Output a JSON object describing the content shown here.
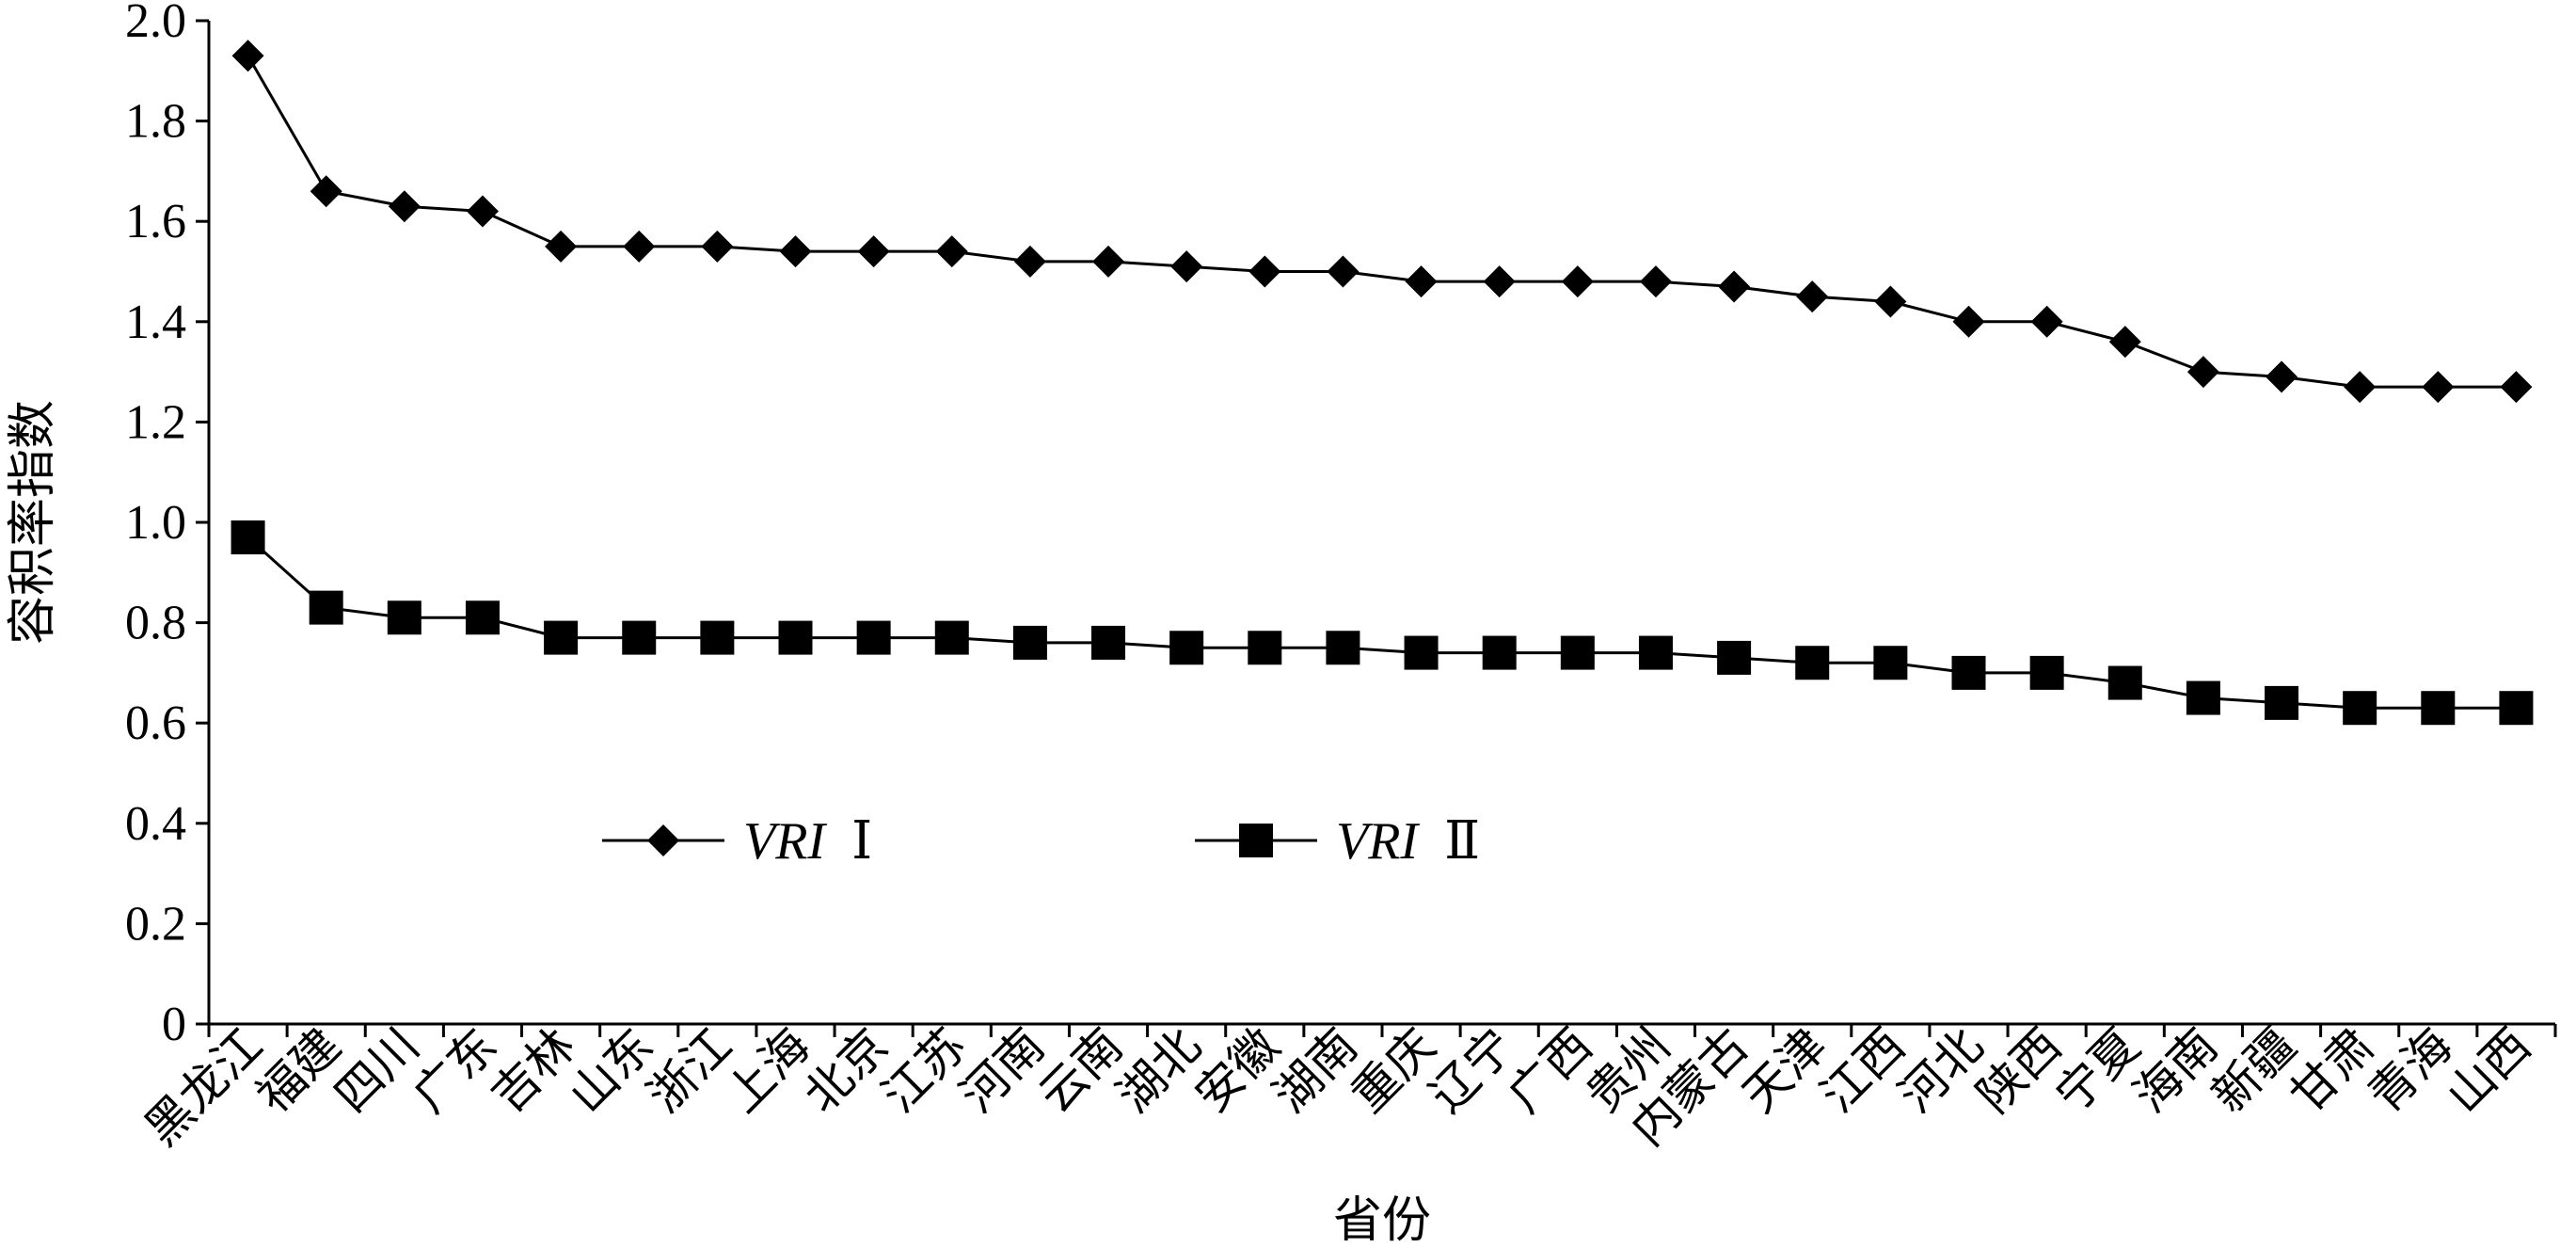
{
  "chart_data": {
    "type": "line",
    "title": "",
    "xlabel": "省份",
    "ylabel": "容积率指数",
    "ylim": [
      0,
      2.0
    ],
    "yticks": [
      "0",
      "0.2",
      "0.4",
      "0.6",
      "0.8",
      "1.0",
      "1.2",
      "1.4",
      "1.6",
      "1.8",
      "2.0"
    ],
    "grid": false,
    "legend_position": "center-left",
    "categories": [
      "黑龙江",
      "福建",
      "四川",
      "广东",
      "吉林",
      "山东",
      "浙江",
      "上海",
      "北京",
      "江苏",
      "河南",
      "云南",
      "湖北",
      "安徽",
      "湖南",
      "重庆",
      "辽宁",
      "广西",
      "贵州",
      "内蒙古",
      "天津",
      "江西",
      "河北",
      "陕西",
      "宁夏",
      "海南",
      "新疆",
      "甘肃",
      "青海",
      "山西"
    ],
    "series": [
      {
        "name": "VRI Ⅰ",
        "name_italic": "VRI",
        "name_suffix": "Ⅰ",
        "marker": "diamond",
        "color": "#000000",
        "values": [
          1.93,
          1.66,
          1.63,
          1.62,
          1.55,
          1.55,
          1.55,
          1.54,
          1.54,
          1.54,
          1.52,
          1.52,
          1.51,
          1.5,
          1.5,
          1.48,
          1.48,
          1.48,
          1.48,
          1.47,
          1.45,
          1.44,
          1.4,
          1.4,
          1.36,
          1.3,
          1.29,
          1.27,
          1.27,
          1.27
        ]
      },
      {
        "name": "VRI Ⅱ",
        "name_italic": "VRI",
        "name_suffix": "Ⅱ",
        "marker": "square",
        "color": "#000000",
        "values": [
          0.97,
          0.83,
          0.81,
          0.81,
          0.77,
          0.77,
          0.77,
          0.77,
          0.77,
          0.77,
          0.76,
          0.76,
          0.75,
          0.75,
          0.75,
          0.74,
          0.74,
          0.74,
          0.74,
          0.73,
          0.72,
          0.72,
          0.7,
          0.7,
          0.68,
          0.65,
          0.64,
          0.63,
          0.63,
          0.63
        ]
      }
    ]
  }
}
